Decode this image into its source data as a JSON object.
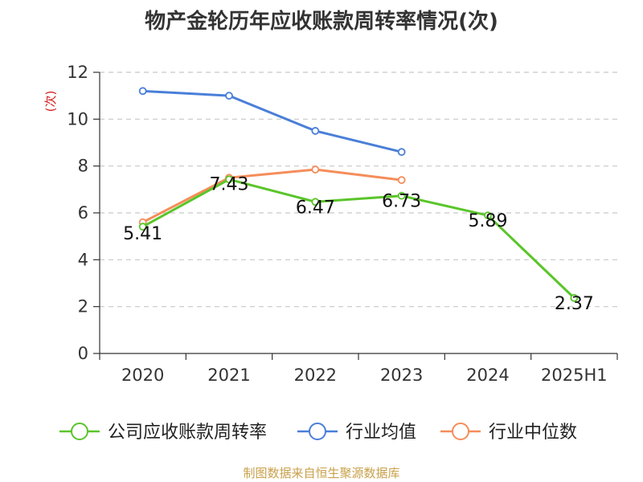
{
  "chart_data": {
    "type": "line",
    "title": "物产金轮历年应收账款周转率情况(次)",
    "ylabel": "(次)",
    "xlabel": "",
    "categories": [
      "2020",
      "2021",
      "2022",
      "2023",
      "2024",
      "2025H1"
    ],
    "ylim": [
      0,
      12
    ],
    "yticks": [
      0,
      2,
      4,
      6,
      8,
      10,
      12
    ],
    "grid": true,
    "legend_position": "bottom",
    "series": [
      {
        "name": "公司应收账款周转率",
        "color": "#5ac52a",
        "values": [
          5.41,
          7.43,
          6.47,
          6.73,
          5.89,
          2.37
        ],
        "labels": [
          "5.41",
          "7.43",
          "6.47",
          "6.73",
          "5.89",
          "2.37"
        ]
      },
      {
        "name": "行业均值",
        "color": "#4a7fd8",
        "values": [
          11.2,
          11.0,
          9.5,
          8.6,
          null,
          null
        ]
      },
      {
        "name": "行业中位数",
        "color": "#f58d5a",
        "values": [
          5.6,
          7.5,
          7.85,
          7.4,
          null,
          null
        ]
      }
    ]
  },
  "footer": {
    "source": "制图数据来自恒生聚源数据库"
  }
}
